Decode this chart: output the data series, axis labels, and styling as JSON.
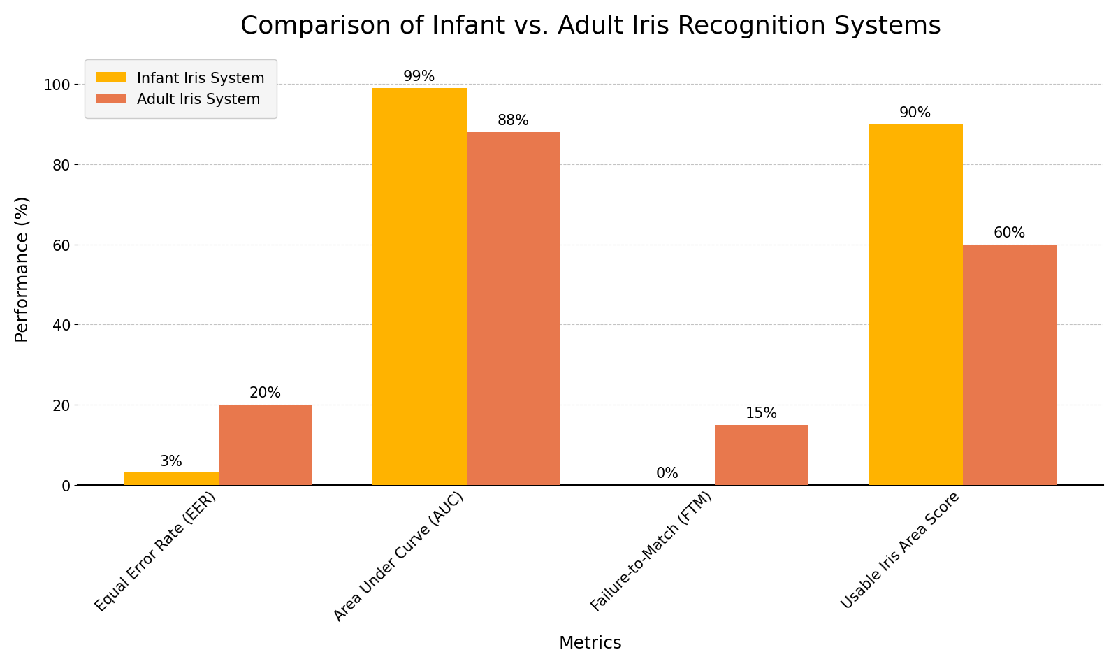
{
  "title": "Comparison of Infant vs. Adult Iris Recognition Systems",
  "xlabel": "Metrics",
  "ylabel": "Performance (%)",
  "categories": [
    "Equal Error Rate (EER)",
    "Area Under Curve (AUC)",
    "Failure-to-Match (FTM)",
    "Usable Iris Area Score"
  ],
  "infant_values": [
    3,
    99,
    0,
    90
  ],
  "adult_values": [
    20,
    88,
    15,
    60
  ],
  "infant_color": "#FFB300",
  "adult_color": "#E8784D",
  "infant_label": "Infant Iris System",
  "adult_label": "Adult Iris System",
  "ylim": [
    0,
    108
  ],
  "yticks": [
    0,
    20,
    40,
    60,
    80,
    100
  ],
  "title_fontsize": 26,
  "axis_label_fontsize": 18,
  "tick_fontsize": 15,
  "annotation_fontsize": 15,
  "legend_fontsize": 15,
  "bar_width": 0.38,
  "background_color": "#ffffff",
  "grid_color": "#aaaaaa",
  "spine_color": "#000000",
  "text_color": "#000000",
  "annotation_color": "#000000"
}
